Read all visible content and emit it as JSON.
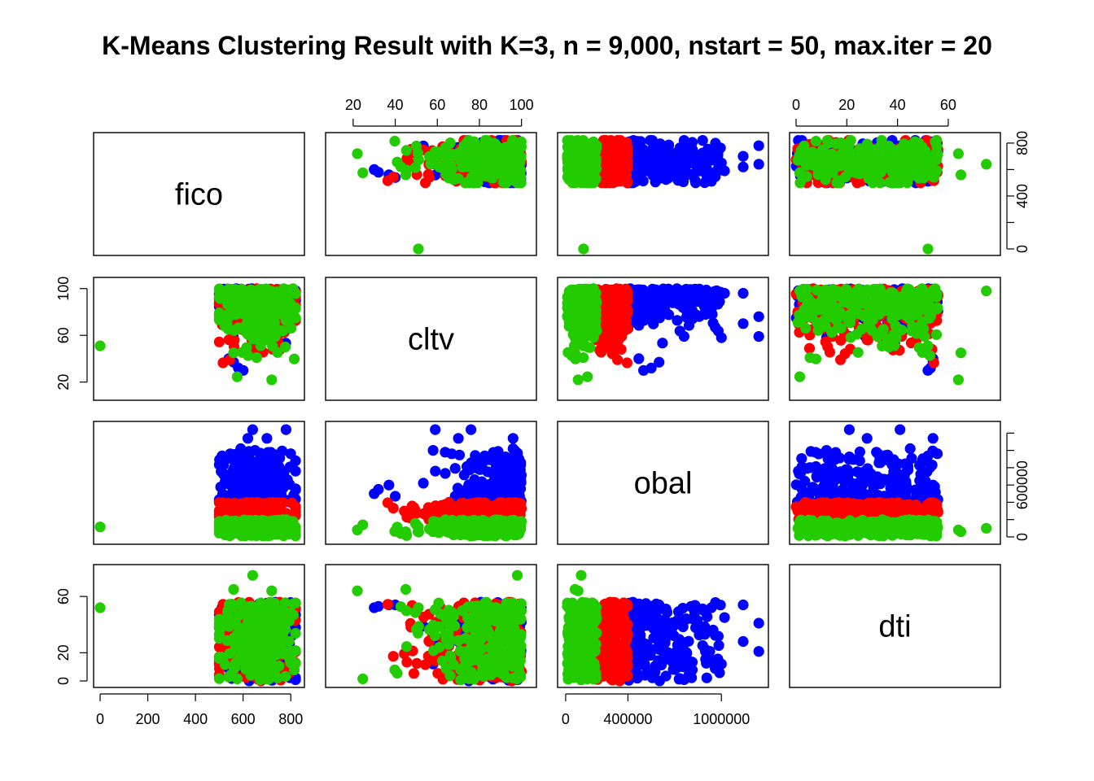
{
  "chart_data": {
    "type": "scatter",
    "subtype": "pairs-matrix",
    "title": "K-Means Clustering Result with K=3, n = 9,000, nstart = 50, max.iter = 20",
    "variables": [
      "fico",
      "cltv",
      "obal",
      "dti"
    ],
    "axis_ticks": {
      "fico": {
        "range": [
          0,
          830
        ],
        "ticks": [
          "0",
          "200",
          "400",
          "600",
          "800"
        ],
        "tick_values": [
          0,
          200,
          400,
          600,
          800
        ]
      },
      "cltv": {
        "range": [
          10,
          104
        ],
        "ticks_top": [
          "20",
          "40",
          "60",
          "80",
          "100"
        ],
        "ticks_left": [
          "20",
          "60",
          "100"
        ],
        "tick_values_top": [
          20,
          40,
          60,
          80,
          100
        ],
        "tick_values_left": [
          20,
          60,
          100
        ]
      },
      "obal": {
        "range": [
          -10000,
          1260000
        ],
        "ticks_bottom": [
          "0",
          "400000",
          "1000000"
        ],
        "ticks_right": [
          "0",
          "600000"
        ],
        "tick_values_bottom": [
          0,
          400000,
          1000000
        ],
        "tick_values_right": [
          0,
          600000
        ]
      },
      "dti": {
        "range": [
          0,
          78
        ],
        "ticks_top": [
          "0",
          "20",
          "40",
          "60"
        ],
        "ticks_left": [
          "0",
          "20",
          "60"
        ],
        "tick_values_top": [
          0,
          20,
          40,
          60
        ],
        "tick_values_left": [
          0,
          20,
          60
        ]
      }
    },
    "clusters": [
      {
        "id": 1,
        "color": "#0000ff",
        "obal_range": [
          400000,
          1000000
        ]
      },
      {
        "id": 2,
        "color": "#ff0000",
        "obal_range": [
          200000,
          400000
        ]
      },
      {
        "id": 3,
        "color": "#22cc00",
        "obal_range": [
          0,
          200000
        ]
      }
    ],
    "cluster_drawing_order": [
      1,
      2,
      3
    ],
    "outliers": [
      {
        "cluster": 3,
        "fico": 0,
        "cltv": 51,
        "obal": 115000,
        "dti": 52
      },
      {
        "cluster": 1,
        "fico": 780,
        "cltv": 76,
        "obal": 1240000,
        "dti": 41
      },
      {
        "cluster": 1,
        "fico": 640,
        "cltv": 59,
        "obal": 1240000,
        "dti": 21
      },
      {
        "cluster": 1,
        "fico": 700,
        "cltv": 96,
        "obal": 1140000,
        "dti": 54
      },
      {
        "cluster": 1,
        "fico": 620,
        "cltv": 70,
        "obal": 1140000,
        "dti": 28
      },
      {
        "cluster": 1,
        "fico": 590,
        "cltv": 96,
        "obal": 1020000,
        "dti": 45
      },
      {
        "cluster": 1,
        "fico": 650,
        "cltv": 58,
        "obal": 1000000,
        "dti": 12
      },
      {
        "cluster": 3,
        "fico": 640,
        "cltv": 98,
        "obal": 100000,
        "dti": 75
      },
      {
        "cluster": 3,
        "fico": 720,
        "cltv": 22,
        "obal": 80000,
        "dti": 64
      },
      {
        "cluster": 3,
        "fico": 560,
        "cltv": 45,
        "obal": 60000,
        "dti": 65
      },
      {
        "cluster": 1,
        "fico": 540,
        "cltv": 40,
        "obal": 470000,
        "dti": 54
      },
      {
        "cluster": 1,
        "fico": 560,
        "cltv": 37,
        "obal": 600000,
        "dti": 54
      },
      {
        "cluster": 1,
        "fico": 580,
        "cltv": 32,
        "obal": 550000,
        "dti": 53
      },
      {
        "cluster": 1,
        "fico": 600,
        "cltv": 30,
        "obal": 500000,
        "dti": 52
      }
    ],
    "point_count": 9000
  },
  "colors": {
    "cluster1": "#0000ff",
    "cluster2": "#ff0000",
    "cluster3": "#22cc00",
    "axis": "#000000",
    "background": "#ffffff"
  }
}
